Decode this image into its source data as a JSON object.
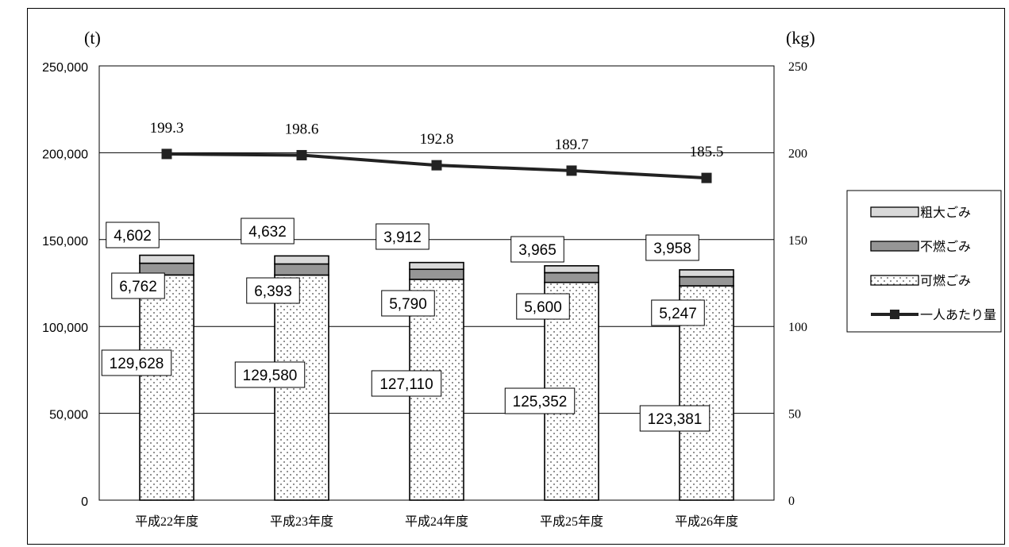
{
  "title": "",
  "left_unit": "(t)",
  "right_unit": "(kg)",
  "chart_data": {
    "type": "bar",
    "stacked": true,
    "categories": [
      "平成22年度",
      "平成23年度",
      "平成24年度",
      "平成25年度",
      "平成26年度"
    ],
    "series": [
      {
        "name": "可燃ごみ",
        "type": "bar",
        "axis": "left",
        "values": [
          129628,
          129580,
          127110,
          125352,
          123381
        ],
        "labels": [
          "129,628",
          "129,580",
          "127,110",
          "125,352",
          "123,381"
        ]
      },
      {
        "name": "不燃ごみ",
        "type": "bar",
        "axis": "left",
        "values": [
          6762,
          6393,
          5790,
          5600,
          5247
        ],
        "labels": [
          "6,762",
          "6,393",
          "5,790",
          "5,600",
          "5,247"
        ]
      },
      {
        "name": "粗大ごみ",
        "type": "bar",
        "axis": "left",
        "values": [
          4602,
          4632,
          3912,
          3965,
          3958
        ],
        "labels": [
          "4,602",
          "4,632",
          "3,912",
          "3,965",
          "3,958"
        ]
      },
      {
        "name": "一人あたり量",
        "type": "line",
        "axis": "right",
        "values": [
          199.3,
          198.6,
          192.8,
          189.7,
          185.5
        ],
        "labels": [
          "199.3",
          "198.6",
          "192.8",
          "189.7",
          "185.5"
        ]
      }
    ],
    "left_axis": {
      "min": 0,
      "max": 250000,
      "ticks": [
        "0",
        "50,000",
        "100,000",
        "150,000",
        "200,000",
        "250,000"
      ]
    },
    "right_axis": {
      "min": 0,
      "max": 250,
      "ticks": [
        "0",
        "50",
        "100",
        "150",
        "200",
        "250"
      ]
    },
    "legend": {
      "position": "right",
      "items": [
        {
          "name": "粗大ごみ",
          "swatch": "#d9d9d9"
        },
        {
          "name": "不燃ごみ",
          "swatch": "#969696"
        },
        {
          "name": "可燃ごみ",
          "swatch": "dotted"
        },
        {
          "name": "一人あたり量",
          "swatch": "line-square"
        }
      ]
    },
    "colors": {
      "bulky": "#d9d9d9",
      "noncombustible": "#969696",
      "combustible": "#ffffff",
      "line": "#222222"
    },
    "grid": true
  }
}
